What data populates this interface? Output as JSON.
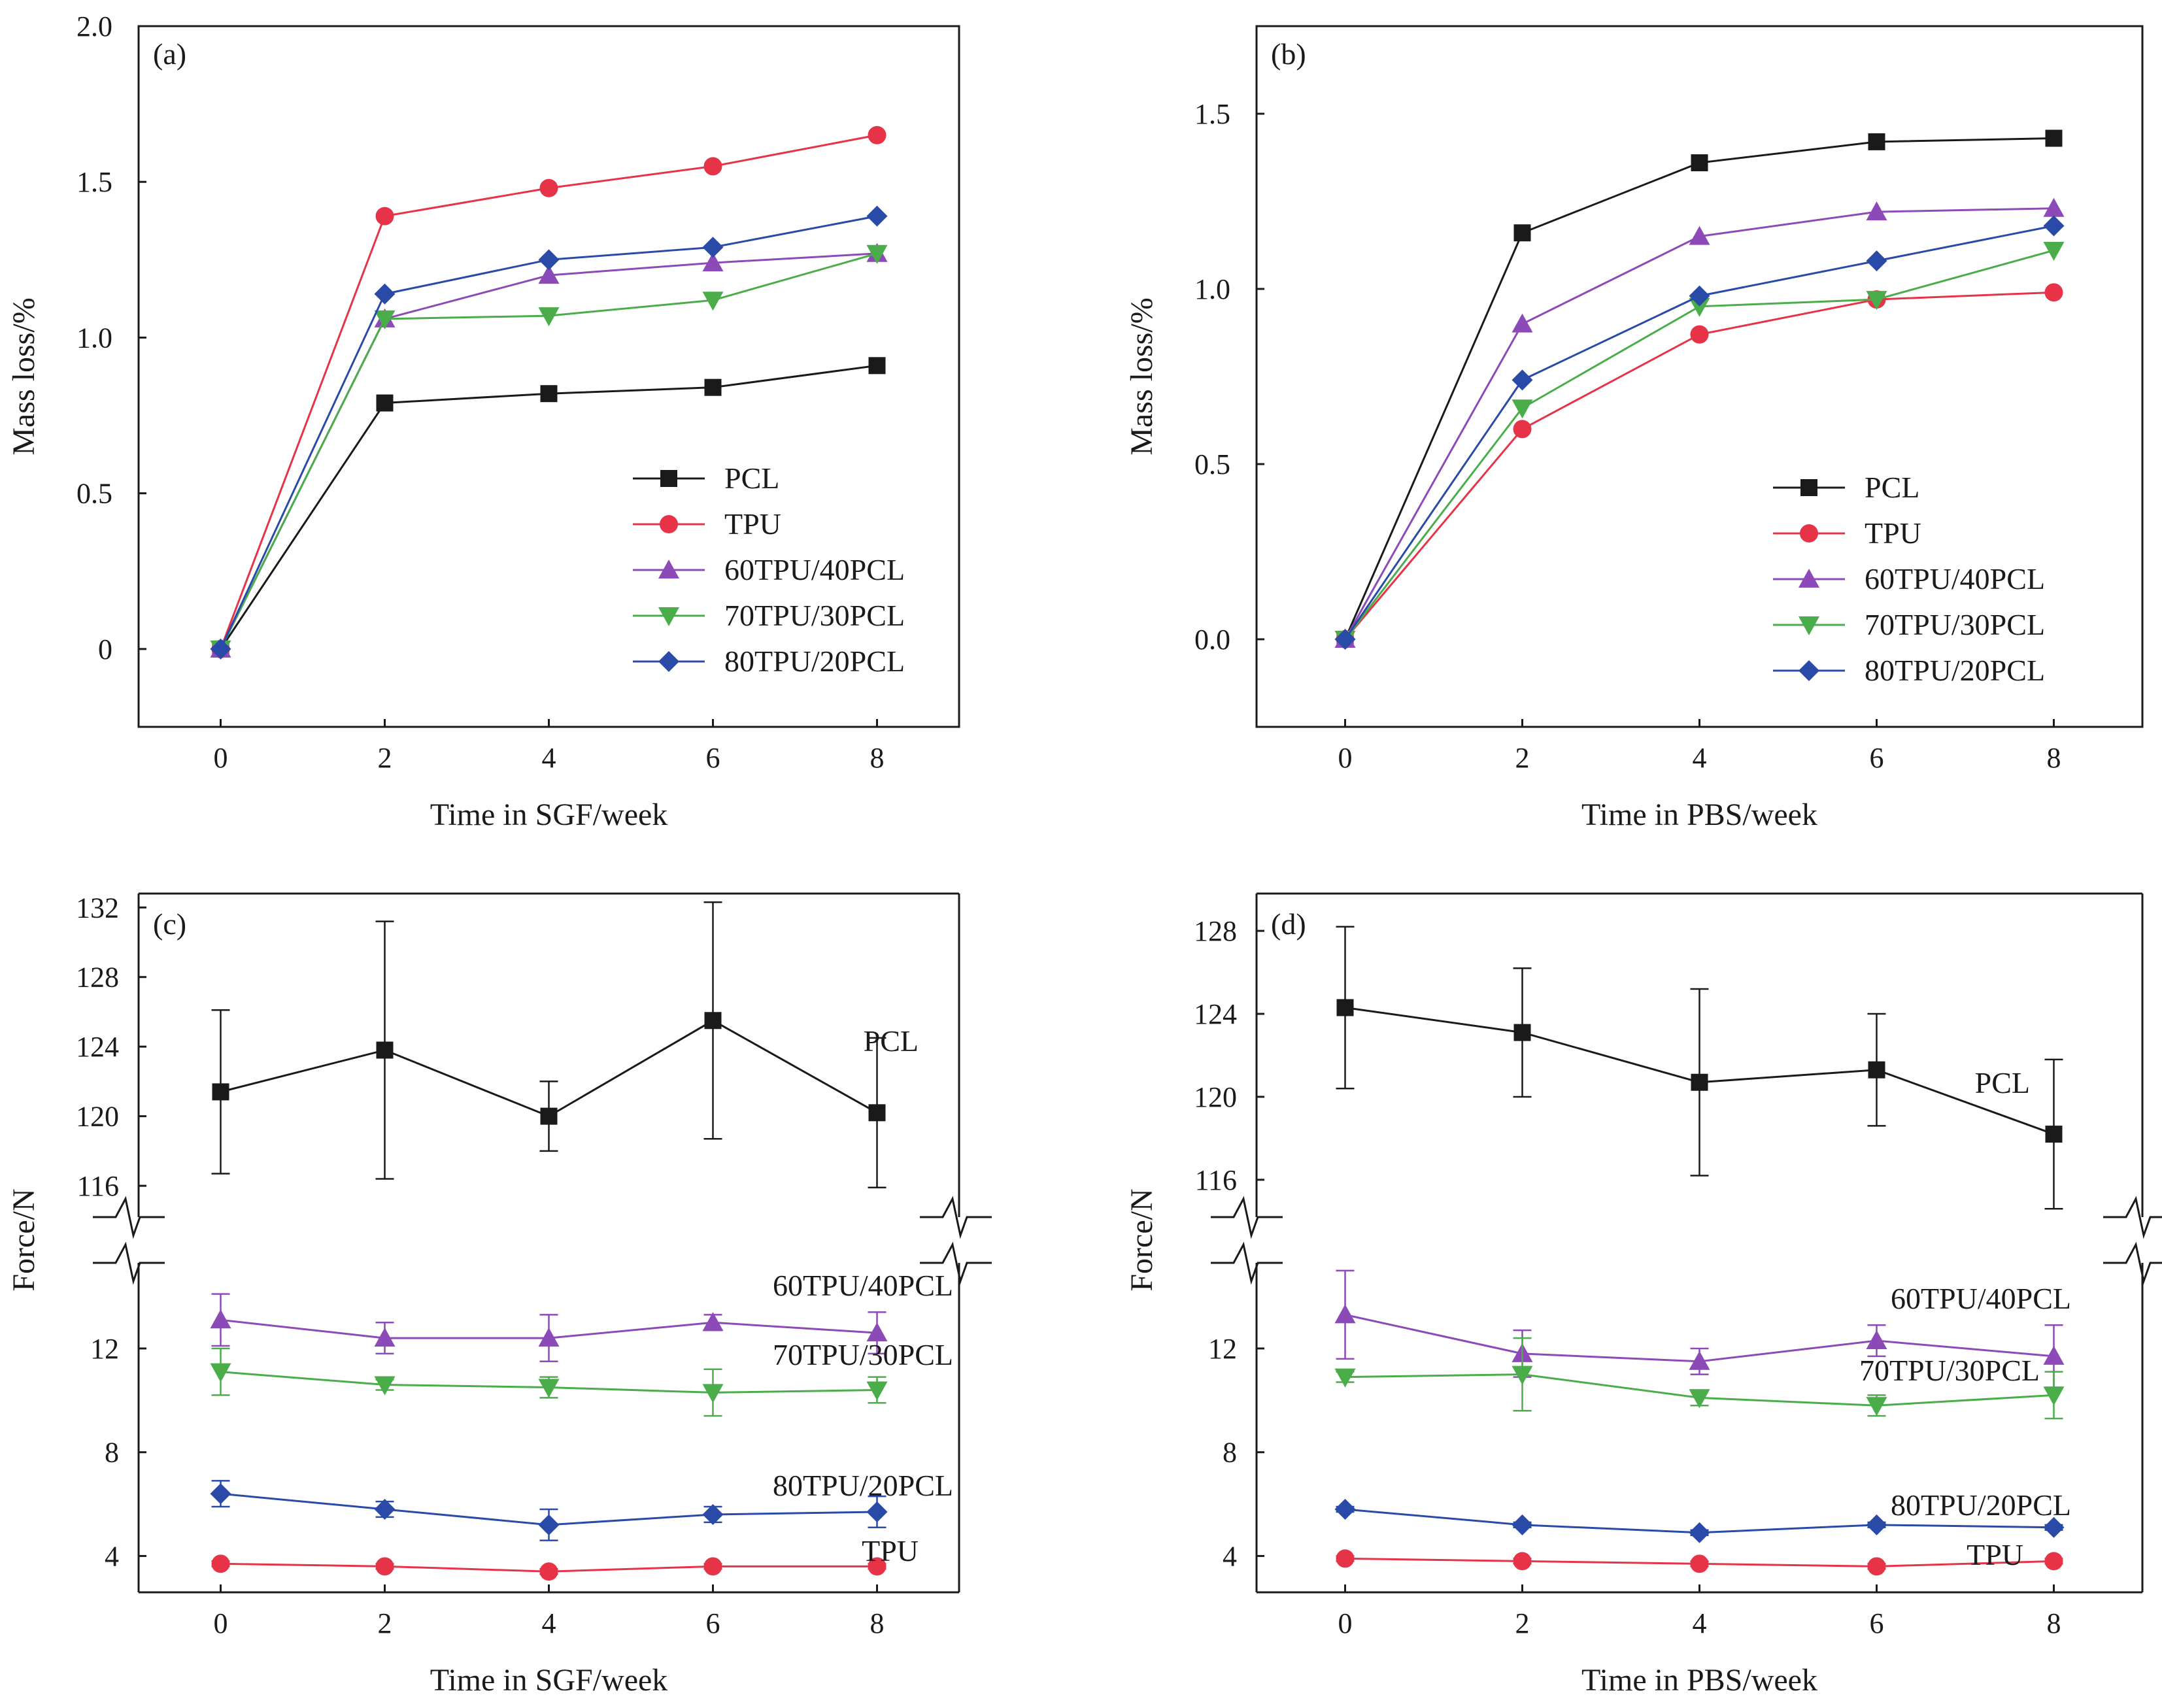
{
  "colors": {
    "PCL": "#1a1a1a",
    "TPU": "#e63347",
    "60TPU/40PCL": "#8c4ab8",
    "70TPU/30PCL": "#4aad4a",
    "80TPU/20PCL": "#2a4aa8"
  },
  "markers": {
    "PCL": "square",
    "TPU": "circle",
    "60TPU/40PCL": "triangle-up",
    "70TPU/30PCL": "triangle-down",
    "80TPU/20PCL": "diamond"
  },
  "chart_data": [
    {
      "panel": "(a)",
      "type": "line",
      "xlabel": "Time in SGF/week",
      "ylabel": "Mass loss/%",
      "x": [
        0,
        2,
        4,
        6,
        8
      ],
      "xlim": [
        -1,
        9
      ],
      "ylim": [
        -0.25,
        2.0
      ],
      "yticks": [
        0,
        0.5,
        1.0,
        1.5,
        2.0
      ],
      "ytick_labels": [
        "0",
        "0.5",
        "1.0",
        "1.5",
        "2.0"
      ],
      "legend": "bottom-right",
      "series": [
        {
          "name": "PCL",
          "values": [
            0,
            0.79,
            0.82,
            0.84,
            0.91
          ]
        },
        {
          "name": "TPU",
          "values": [
            0,
            1.39,
            1.48,
            1.55,
            1.65
          ]
        },
        {
          "name": "60TPU/40PCL",
          "values": [
            0,
            1.06,
            1.2,
            1.24,
            1.27
          ]
        },
        {
          "name": "70TPU/30PCL",
          "values": [
            0,
            1.06,
            1.07,
            1.12,
            1.27
          ]
        },
        {
          "name": "80TPU/20PCL",
          "values": [
            0,
            1.14,
            1.25,
            1.29,
            1.39
          ]
        }
      ]
    },
    {
      "panel": "(b)",
      "type": "line",
      "xlabel": "Time in PBS/week",
      "ylabel": "Mass loss/%",
      "x": [
        0,
        2,
        4,
        6,
        8
      ],
      "xlim": [
        -1,
        9
      ],
      "ylim": [
        -0.25,
        1.75
      ],
      "yticks": [
        0,
        0.5,
        1.0,
        1.5
      ],
      "ytick_labels": [
        "0.0",
        "0.5",
        "1.0",
        "1.5"
      ],
      "legend": "bottom-right",
      "series": [
        {
          "name": "PCL",
          "values": [
            0,
            1.16,
            1.36,
            1.42,
            1.43
          ]
        },
        {
          "name": "TPU",
          "values": [
            0,
            0.6,
            0.87,
            0.97,
            0.99
          ]
        },
        {
          "name": "60TPU/40PCL",
          "values": [
            0,
            0.9,
            1.15,
            1.22,
            1.23
          ]
        },
        {
          "name": "70TPU/30PCL",
          "values": [
            0,
            0.66,
            0.95,
            0.97,
            1.11
          ]
        },
        {
          "name": "80TPU/20PCL",
          "values": [
            0,
            0.74,
            0.98,
            1.08,
            1.18
          ]
        }
      ]
    },
    {
      "panel": "(c)",
      "type": "line",
      "xlabel": "Time in SGF/week",
      "ylabel": "Force/N",
      "x": [
        0,
        2,
        4,
        6,
        8
      ],
      "xlim": [
        -1,
        9
      ],
      "broken_axis": true,
      "upper_ylim": [
        114.2,
        132.8
      ],
      "upper_yticks": [
        116,
        120,
        124,
        128,
        132
      ],
      "lower_ylim": [
        2.6,
        15.3
      ],
      "lower_yticks": [
        4,
        8,
        12
      ],
      "series": [
        {
          "name": "PCL",
          "label": "PCL",
          "values": [
            121.4,
            123.8,
            120.0,
            125.5,
            120.2
          ],
          "errors": [
            4.7,
            7.4,
            2.0,
            6.8,
            4.3
          ]
        },
        {
          "name": "60TPU/40PCL",
          "label": "60TPU/40PCL",
          "values": [
            13.1,
            12.4,
            12.4,
            13.0,
            12.6
          ],
          "errors": [
            1.0,
            0.6,
            0.9,
            0.3,
            0.8
          ]
        },
        {
          "name": "70TPU/30PCL",
          "label": "70TPU/30PCL",
          "values": [
            11.1,
            10.6,
            10.5,
            10.3,
            10.4
          ],
          "errors": [
            0.9,
            0.2,
            0.4,
            0.9,
            0.5
          ]
        },
        {
          "name": "80TPU/20PCL",
          "label": "80TPU/20PCL",
          "values": [
            6.4,
            5.8,
            5.2,
            5.6,
            5.7
          ],
          "errors": [
            0.5,
            0.3,
            0.6,
            0.3,
            0.6
          ]
        },
        {
          "name": "TPU",
          "label": "TPU",
          "values": [
            3.7,
            3.6,
            3.4,
            3.6,
            3.6
          ],
          "errors": [
            0.1,
            0.1,
            0.1,
            0.1,
            0.1
          ]
        }
      ]
    },
    {
      "panel": "(d)",
      "type": "line",
      "xlabel": "Time in PBS/week",
      "ylabel": "Force/N",
      "x": [
        0,
        2,
        4,
        6,
        8
      ],
      "xlim": [
        -1,
        9
      ],
      "broken_axis": true,
      "upper_ylim": [
        114.2,
        129.8
      ],
      "upper_yticks": [
        116,
        120,
        124,
        128
      ],
      "lower_ylim": [
        2.6,
        15.3
      ],
      "lower_yticks": [
        4,
        8,
        12
      ],
      "series": [
        {
          "name": "PCL",
          "label": "PCL",
          "values": [
            124.3,
            123.1,
            120.7,
            121.3,
            118.2
          ],
          "errors": [
            3.9,
            3.1,
            4.5,
            2.7,
            3.6
          ]
        },
        {
          "name": "60TPU/40PCL",
          "label": "60TPU/40PCL",
          "values": [
            13.3,
            11.8,
            11.5,
            12.3,
            11.7
          ],
          "errors": [
            1.7,
            0.9,
            0.5,
            0.6,
            1.2
          ]
        },
        {
          "name": "70TPU/30PCL",
          "label": "70TPU/30PCL",
          "values": [
            10.9,
            11.0,
            10.1,
            9.8,
            10.2
          ],
          "errors": [
            0.2,
            1.4,
            0.3,
            0.4,
            0.9
          ]
        },
        {
          "name": "80TPU/20PCL",
          "label": "80TPU/20PCL",
          "values": [
            5.8,
            5.2,
            4.9,
            5.2,
            5.1
          ],
          "errors": [
            0.1,
            0.1,
            0.1,
            0.1,
            0.1
          ]
        },
        {
          "name": "TPU",
          "label": "TPU",
          "values": [
            3.9,
            3.8,
            3.7,
            3.6,
            3.8
          ],
          "errors": [
            0.1,
            0.1,
            0.1,
            0.1,
            0.1
          ]
        }
      ]
    }
  ]
}
